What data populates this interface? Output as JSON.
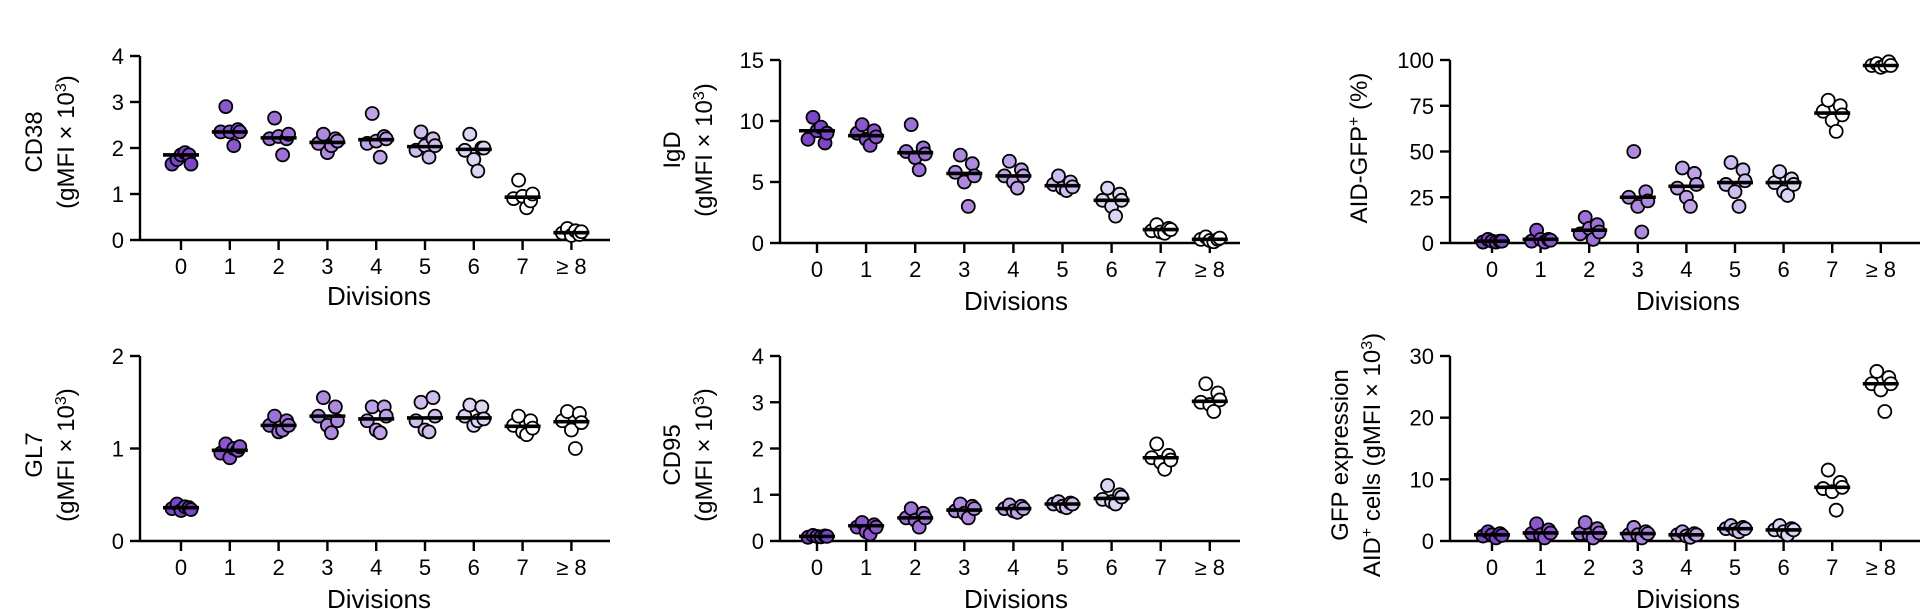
{
  "figure": {
    "shared_xlabel": "Divisions",
    "categories": [
      "0",
      "1",
      "2",
      "3",
      "4",
      "5",
      "6",
      "7",
      "≥ 8"
    ],
    "point_colors": [
      "#7b46c7",
      "#8a57cd",
      "#9d72d6",
      "#ae8adf",
      "#bfa3e7",
      "#cfbdee",
      "#ded4f4",
      "#ffffff",
      "#ffffff"
    ]
  },
  "chart_data": [
    {
      "type": "scatter",
      "subtype": "dot-strip-plot with median bars",
      "ylabel_line1": "CD38",
      "ylabel_line2": "(gMFI × 10",
      "ylabel_sup": "3",
      "ylabel_close": ")",
      "xlabel": "Divisions",
      "ylim": [
        0,
        4
      ],
      "yticks": [
        "0",
        "1",
        "2",
        "3",
        "4"
      ],
      "categories": [
        "0",
        "1",
        "2",
        "3",
        "4",
        "5",
        "6",
        "7",
        "≥ 8"
      ],
      "medians": [
        1.85,
        2.35,
        2.22,
        2.12,
        2.18,
        2.03,
        1.97,
        0.93,
        0.16
      ],
      "points": [
        [
          1.65,
          1.75,
          1.85,
          1.9,
          1.85,
          1.65
        ],
        [
          2.35,
          2.9,
          2.35,
          2.05,
          2.4,
          2.35
        ],
        [
          2.2,
          2.65,
          2.25,
          1.85,
          2.2,
          2.3
        ],
        [
          2.1,
          2.3,
          1.9,
          2.05,
          2.2,
          2.15
        ],
        [
          2.1,
          2.75,
          2.15,
          1.8,
          2.25,
          2.2
        ],
        [
          1.95,
          2.35,
          2.05,
          1.8,
          2.2,
          2.05
        ],
        [
          1.95,
          2.3,
          1.75,
          1.5,
          2.0,
          2.0
        ],
        [
          0.9,
          1.3,
          0.95,
          0.7,
          0.85,
          1.0
        ],
        [
          0.15,
          0.25,
          0.1,
          0.2,
          0.12,
          0.18
        ]
      ]
    },
    {
      "type": "scatter",
      "subtype": "dot-strip-plot with median bars",
      "ylabel_line1": "IgD",
      "ylabel_line2": "(gMFI × 10",
      "ylabel_sup": "3",
      "ylabel_close": ")",
      "xlabel": "Divisions",
      "ylim": [
        0,
        15
      ],
      "yticks": [
        "0",
        "5",
        "10",
        "15"
      ],
      "categories": [
        "0",
        "1",
        "2",
        "3",
        "4",
        "5",
        "6",
        "7",
        "≥ 8"
      ],
      "medians": [
        9.2,
        8.8,
        7.4,
        5.7,
        5.5,
        4.7,
        3.5,
        1.1,
        0.3
      ],
      "points": [
        [
          8.5,
          10.3,
          9.2,
          9.5,
          8.2,
          9.0
        ],
        [
          9.0,
          9.7,
          8.5,
          8.0,
          9.2,
          8.7
        ],
        [
          7.5,
          9.7,
          7.0,
          6.0,
          7.8,
          7.3
        ],
        [
          5.8,
          7.2,
          5.0,
          3.0,
          6.5,
          5.5
        ],
        [
          5.5,
          6.7,
          5.0,
          4.5,
          6.0,
          5.5
        ],
        [
          4.8,
          5.5,
          4.5,
          4.3,
          5.0,
          4.6
        ],
        [
          3.5,
          4.5,
          3.0,
          2.2,
          4.0,
          3.5
        ],
        [
          1.0,
          1.5,
          0.9,
          0.8,
          1.2,
          1.1
        ],
        [
          0.3,
          0.5,
          0.2,
          0.1,
          0.3,
          0.4
        ]
      ]
    },
    {
      "type": "scatter",
      "subtype": "dot-strip-plot with median bars",
      "ylabel_line1": "AID-GFP",
      "ylabel_sup": "+",
      "ylabel_rest": " (%)",
      "xlabel": "Divisions",
      "ylim": [
        0,
        100
      ],
      "yticks": [
        "0",
        "25",
        "50",
        "75",
        "100"
      ],
      "categories": [
        "0",
        "1",
        "2",
        "3",
        "4",
        "5",
        "6",
        "7",
        "≥ 8"
      ],
      "medians": [
        1,
        2,
        7,
        25,
        31,
        33,
        33,
        71,
        97
      ],
      "points": [
        [
          0.5,
          2,
          1,
          0.5,
          1,
          1
        ],
        [
          1,
          7,
          2,
          0.5,
          2,
          1.5
        ],
        [
          5,
          14,
          8,
          2,
          10,
          6
        ],
        [
          25,
          50,
          20,
          6,
          28,
          23
        ],
        [
          30,
          41,
          25,
          20,
          38,
          32
        ],
        [
          32,
          44,
          28,
          20,
          40,
          34
        ],
        [
          33,
          39,
          28,
          26,
          35,
          32
        ],
        [
          72,
          78,
          67,
          61,
          75,
          70
        ],
        [
          97,
          98,
          96,
          97,
          99,
          97
        ]
      ]
    },
    {
      "type": "scatter",
      "subtype": "dot-strip-plot with median bars",
      "ylabel_line1": "GL7",
      "ylabel_line2": "(gMFI × 10",
      "ylabel_sup": "3",
      "ylabel_close": ")",
      "xlabel": "Divisions",
      "ylim": [
        0,
        2
      ],
      "yticks": [
        "0",
        "1",
        "2"
      ],
      "categories": [
        "0",
        "1",
        "2",
        "3",
        "4",
        "5",
        "6",
        "7",
        "≥ 8"
      ],
      "medians": [
        0.36,
        0.98,
        1.25,
        1.35,
        1.32,
        1.33,
        1.33,
        1.24,
        1.29
      ],
      "points": [
        [
          0.35,
          0.4,
          0.33,
          0.37,
          0.36,
          0.34
        ],
        [
          0.95,
          1.05,
          0.9,
          1.0,
          0.98,
          1.02
        ],
        [
          1.25,
          1.35,
          1.18,
          1.2,
          1.3,
          1.25
        ],
        [
          1.35,
          1.55,
          1.25,
          1.17,
          1.45,
          1.3
        ],
        [
          1.3,
          1.45,
          1.2,
          1.17,
          1.45,
          1.35
        ],
        [
          1.3,
          1.5,
          1.2,
          1.18,
          1.55,
          1.35
        ],
        [
          1.35,
          1.47,
          1.25,
          1.3,
          1.45,
          1.32
        ],
        [
          1.25,
          1.35,
          1.18,
          1.15,
          1.3,
          1.22
        ],
        [
          1.3,
          1.4,
          1.2,
          1.0,
          1.38,
          1.28
        ]
      ]
    },
    {
      "type": "scatter",
      "subtype": "dot-strip-plot with median bars",
      "ylabel_line1": "CD95",
      "ylabel_line2": "(gMFI × 10",
      "ylabel_sup": "3",
      "ylabel_close": ")",
      "xlabel": "Divisions",
      "ylim": [
        0,
        4
      ],
      "yticks": [
        "0",
        "1",
        "2",
        "3",
        "4"
      ],
      "categories": [
        "0",
        "1",
        "2",
        "3",
        "4",
        "5",
        "6",
        "7",
        "≥ 8"
      ],
      "medians": [
        0.1,
        0.33,
        0.5,
        0.67,
        0.7,
        0.8,
        0.92,
        1.8,
        3.02
      ],
      "points": [
        [
          0.08,
          0.12,
          0.1,
          0.09,
          0.11,
          0.1
        ],
        [
          0.3,
          0.4,
          0.2,
          0.15,
          0.35,
          0.3
        ],
        [
          0.5,
          0.7,
          0.45,
          0.3,
          0.6,
          0.5
        ],
        [
          0.65,
          0.8,
          0.6,
          0.5,
          0.75,
          0.7
        ],
        [
          0.7,
          0.78,
          0.65,
          0.62,
          0.75,
          0.7
        ],
        [
          0.8,
          0.85,
          0.75,
          0.72,
          0.82,
          0.8
        ],
        [
          0.9,
          1.2,
          0.85,
          0.8,
          1.0,
          0.95
        ],
        [
          1.8,
          2.1,
          1.7,
          1.55,
          1.85,
          1.75
        ],
        [
          3.0,
          3.4,
          2.95,
          2.8,
          3.2,
          3.05
        ]
      ]
    },
    {
      "type": "scatter",
      "subtype": "dot-strip-plot with median bars",
      "ylabel_line1": "GFP expression",
      "ylabel_pre": "AID",
      "ylabel_sup": "+",
      "ylabel_line2": " cells (gMFI × 10",
      "ylabel_sup2": "3",
      "ylabel_close": ")",
      "xlabel": "Divisions",
      "ylim": [
        0,
        30
      ],
      "yticks": [
        "0",
        "10",
        "20",
        "30"
      ],
      "categories": [
        "0",
        "1",
        "2",
        "3",
        "4",
        "5",
        "6",
        "7",
        "≥ 8"
      ],
      "medians": [
        1,
        1.3,
        1.3,
        1.2,
        1.0,
        2.0,
        1.8,
        8.7,
        25.5
      ],
      "points": [
        [
          0.8,
          1.5,
          1.0,
          0.5,
          1.2,
          0.9
        ],
        [
          1.2,
          2.8,
          1.0,
          0.5,
          1.8,
          1.3
        ],
        [
          1.2,
          3.0,
          1.0,
          0.5,
          2.0,
          1.3
        ],
        [
          1.0,
          2.2,
          1.0,
          0.5,
          1.5,
          1.2
        ],
        [
          1.0,
          1.5,
          0.8,
          0.6,
          1.2,
          1.0
        ],
        [
          2.0,
          2.5,
          1.8,
          1.5,
          2.2,
          2.0
        ],
        [
          1.8,
          2.5,
          1.5,
          1.0,
          2.0,
          1.8
        ],
        [
          8.5,
          11.5,
          8.0,
          5.0,
          9.5,
          8.7
        ],
        [
          25.5,
          27.5,
          24.5,
          21.0,
          26.5,
          25.5
        ]
      ]
    }
  ]
}
